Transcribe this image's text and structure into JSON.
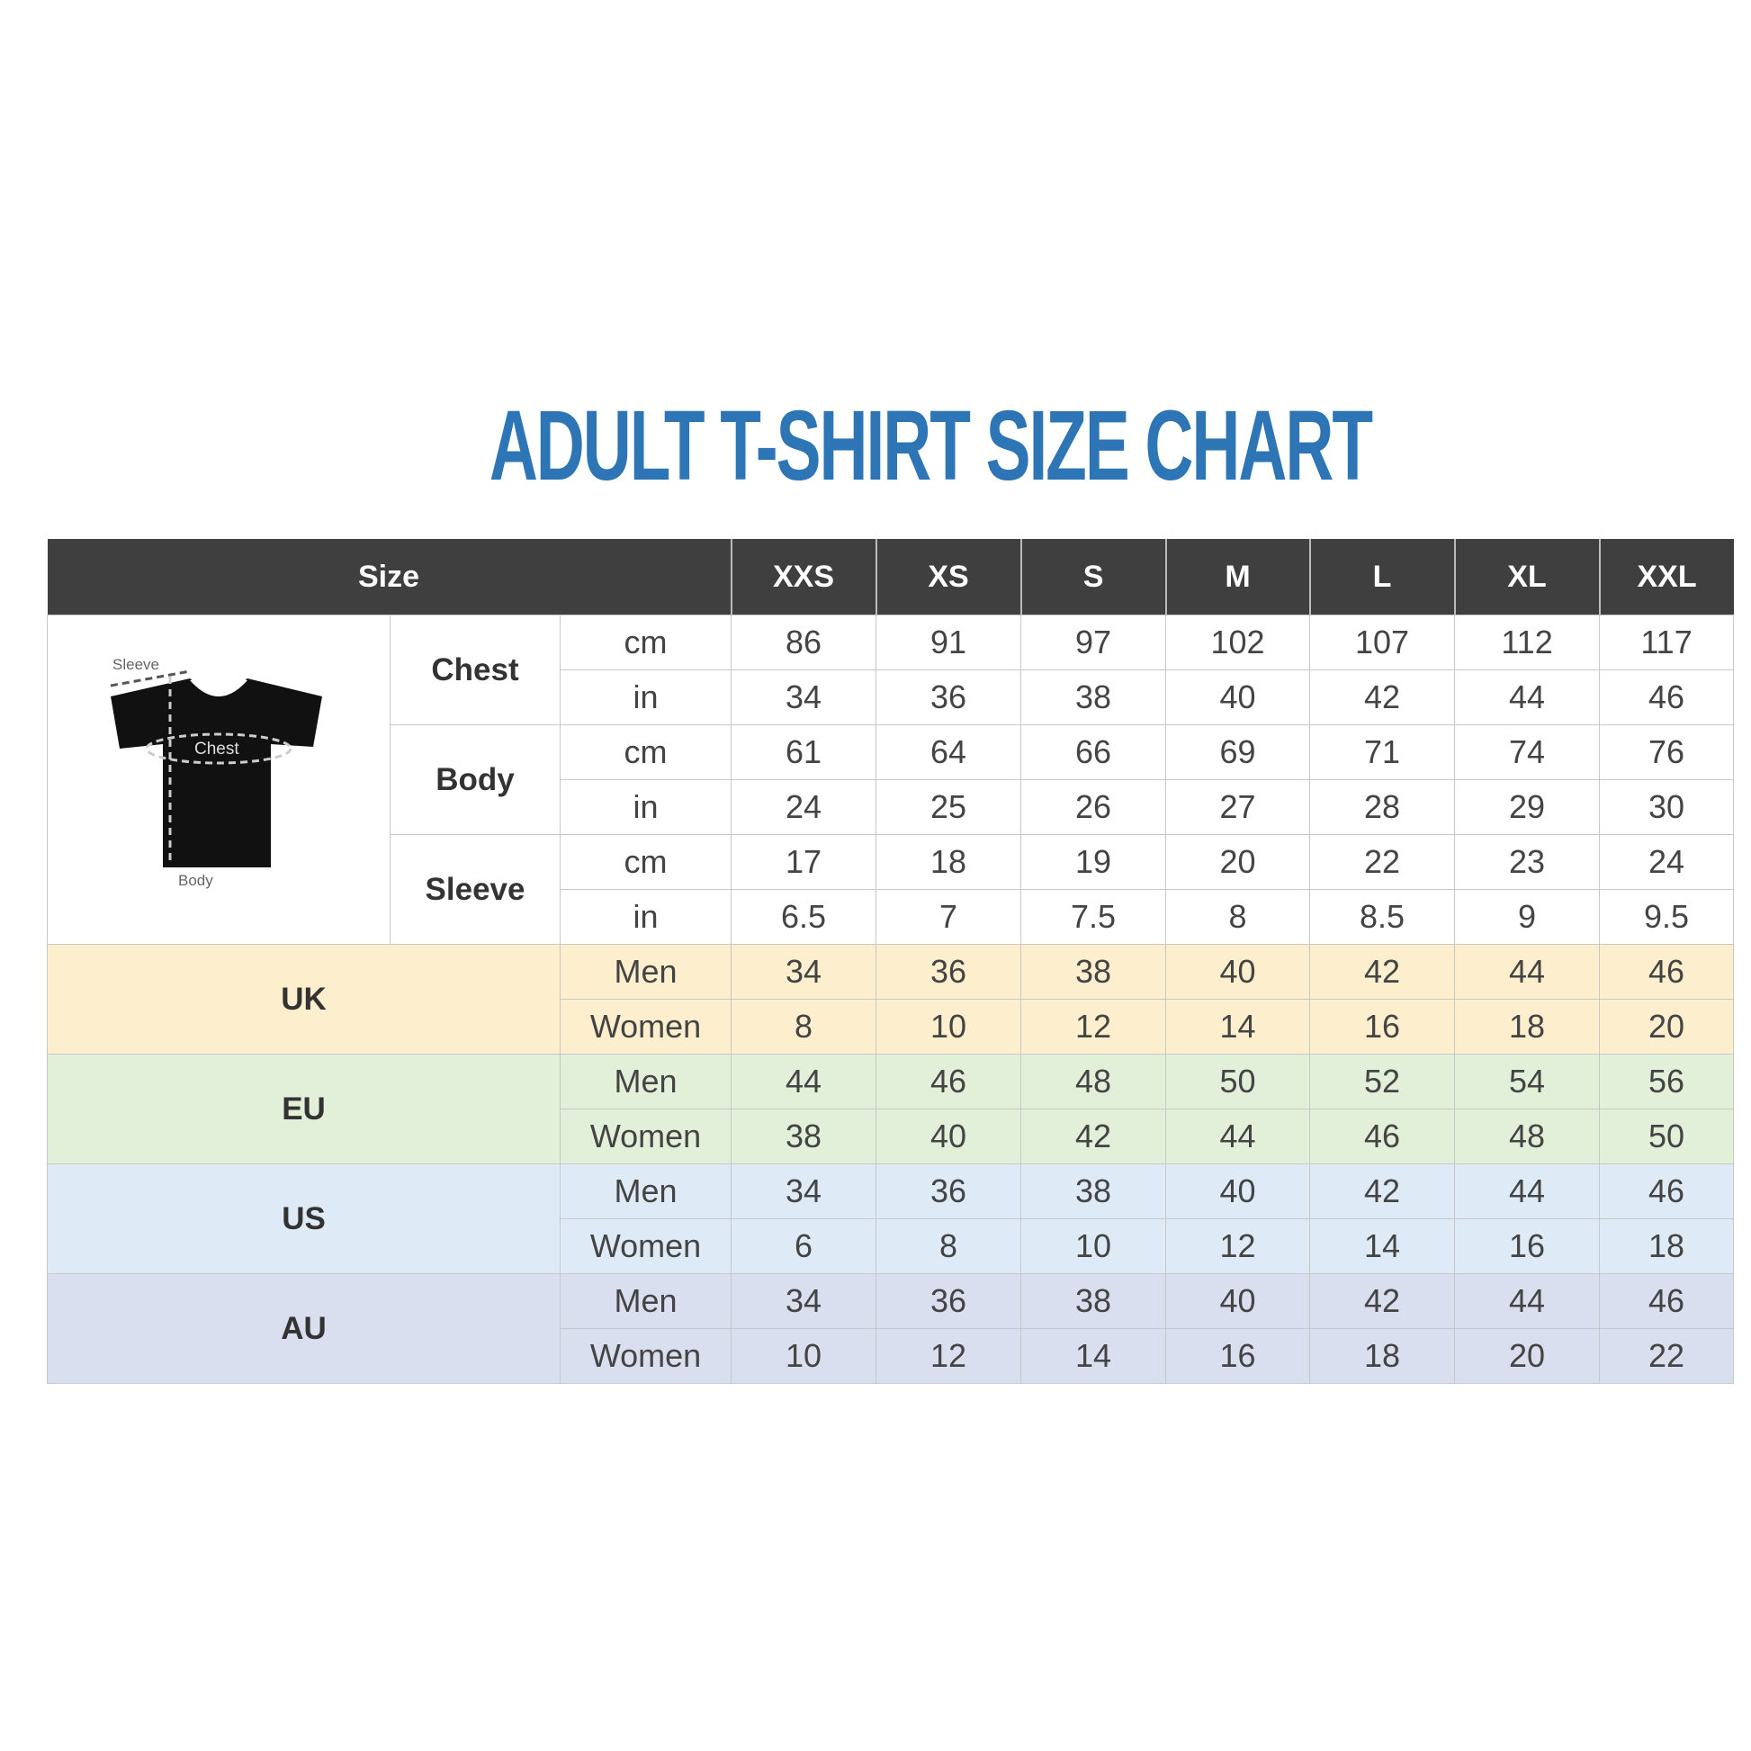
{
  "title": "ADULT T-SHIRT SIZE CHART",
  "header": {
    "size_label": "Size",
    "sizes": [
      "XXS",
      "XS",
      "S",
      "M",
      "L",
      "XL",
      "XXL"
    ]
  },
  "diagram": {
    "sleeve_label": "Sleeve",
    "chest_label": "Chest",
    "body_label": "Body"
  },
  "measurements": [
    {
      "name": "Chest",
      "rows": [
        {
          "unit": "cm",
          "values": [
            "86",
            "91",
            "97",
            "102",
            "107",
            "112",
            "117"
          ]
        },
        {
          "unit": "in",
          "values": [
            "34",
            "36",
            "38",
            "40",
            "42",
            "44",
            "46"
          ]
        }
      ]
    },
    {
      "name": "Body",
      "rows": [
        {
          "unit": "cm",
          "values": [
            "61",
            "64",
            "66",
            "69",
            "71",
            "74",
            "76"
          ]
        },
        {
          "unit": "in",
          "values": [
            "24",
            "25",
            "26",
            "27",
            "28",
            "29",
            "30"
          ]
        }
      ]
    },
    {
      "name": "Sleeve",
      "rows": [
        {
          "unit": "cm",
          "values": [
            "17",
            "18",
            "19",
            "20",
            "22",
            "23",
            "24"
          ]
        },
        {
          "unit": "in",
          "values": [
            "6.5",
            "7",
            "7.5",
            "8",
            "8.5",
            "9",
            "9.5"
          ]
        }
      ]
    }
  ],
  "regions": [
    {
      "name": "UK",
      "color": "#fdefcd",
      "rows": [
        {
          "gender": "Men",
          "values": [
            "34",
            "36",
            "38",
            "40",
            "42",
            "44",
            "46"
          ]
        },
        {
          "gender": "Women",
          "values": [
            "8",
            "10",
            "12",
            "14",
            "16",
            "18",
            "20"
          ]
        }
      ]
    },
    {
      "name": "EU",
      "color": "#e2efd9",
      "rows": [
        {
          "gender": "Men",
          "values": [
            "44",
            "46",
            "48",
            "50",
            "52",
            "54",
            "56"
          ]
        },
        {
          "gender": "Women",
          "values": [
            "38",
            "40",
            "42",
            "44",
            "46",
            "48",
            "50"
          ]
        }
      ]
    },
    {
      "name": "US",
      "color": "#deebf7",
      "rows": [
        {
          "gender": "Men",
          "values": [
            "34",
            "36",
            "38",
            "40",
            "42",
            "44",
            "46"
          ]
        },
        {
          "gender": "Women",
          "values": [
            "6",
            "8",
            "10",
            "12",
            "14",
            "16",
            "18"
          ]
        }
      ]
    },
    {
      "name": "AU",
      "color": "#dadfef",
      "rows": [
        {
          "gender": "Men",
          "values": [
            "34",
            "36",
            "38",
            "40",
            "42",
            "44",
            "46"
          ]
        },
        {
          "gender": "Women",
          "values": [
            "10",
            "12",
            "14",
            "16",
            "18",
            "20",
            "22"
          ]
        }
      ]
    }
  ],
  "colors": {
    "title": "#2e75b6",
    "header_bg": "#3f3f3f"
  }
}
